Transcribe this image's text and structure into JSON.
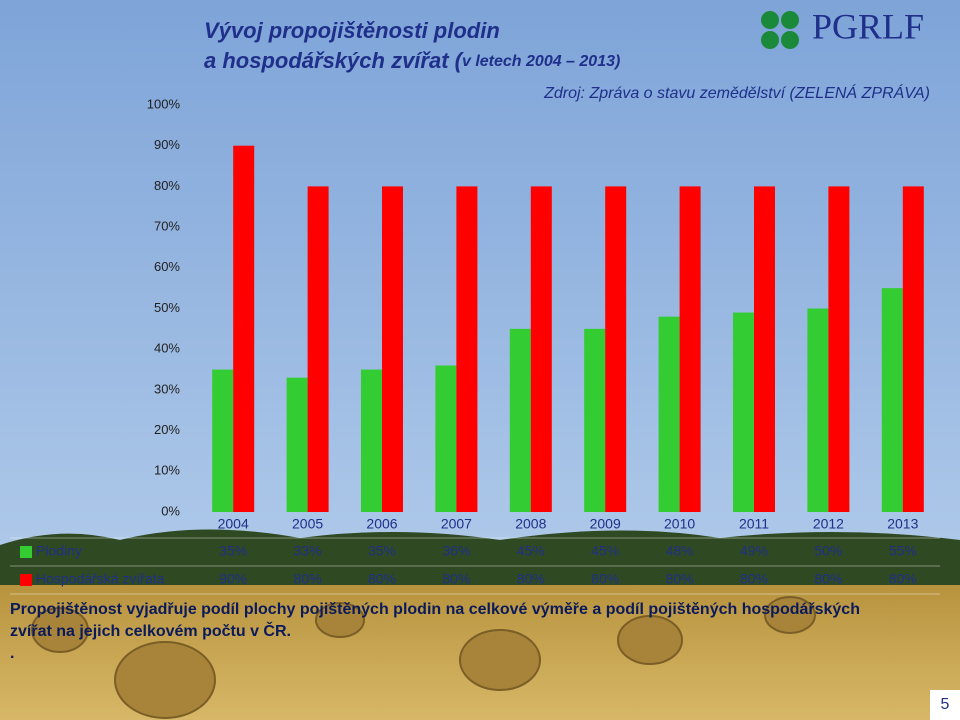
{
  "header": {
    "title_lines": [
      "Vývoj propojištěnosti plodin",
      "a hospodářských zvířat ("
    ],
    "title_period": "v letech 2004 – 2013)",
    "source": "Zdroj: Zpráva o stavu zemědělství (ZELENÁ ZPRÁVA)",
    "logo": "PGRLF"
  },
  "chart_data": {
    "type": "bar",
    "categories": [
      "2004",
      "2005",
      "2006",
      "2007",
      "2008",
      "2009",
      "2010",
      "2011",
      "2012",
      "2013"
    ],
    "series": [
      {
        "name": "Plodiny",
        "color": "#33cc33",
        "values": [
          35,
          33,
          35,
          36,
          45,
          45,
          48,
          49,
          50,
          55
        ],
        "value_labels": [
          "35%",
          "33%",
          "35%",
          "36%",
          "45%",
          "45%",
          "48%",
          "49%",
          "50%",
          "55%"
        ]
      },
      {
        "name": "Hospodářská zvířata",
        "color": "#ff0000",
        "values": [
          90,
          80,
          80,
          80,
          80,
          80,
          80,
          80,
          80,
          80
        ],
        "value_labels": [
          "90%",
          "80%",
          "80%",
          "80%",
          "80%",
          "80%",
          "80%",
          "80%",
          "80%",
          "80%"
        ]
      }
    ],
    "ylim": [
      0,
      100
    ],
    "yticks": [
      {
        "value": 0,
        "label": "0%"
      },
      {
        "value": 10,
        "label": "10%"
      },
      {
        "value": 20,
        "label": "20%"
      },
      {
        "value": 30,
        "label": "30%"
      },
      {
        "value": 40,
        "label": "40%"
      },
      {
        "value": 50,
        "label": "50%"
      },
      {
        "value": 60,
        "label": "60%"
      },
      {
        "value": 70,
        "label": "70%"
      },
      {
        "value": 80,
        "label": "80%"
      },
      {
        "value": 90,
        "label": "90%"
      },
      {
        "value": 100,
        "label": "100%"
      }
    ]
  },
  "footnote": {
    "lines": [
      "Propojištěnost vyjadřuje podíl plochy pojištěných plodin na celkové výměře a podíl pojištěných hospodářských",
      "zvířat na jejich celkovém počtu v ČR.",
      "."
    ]
  },
  "page_number": "5"
}
